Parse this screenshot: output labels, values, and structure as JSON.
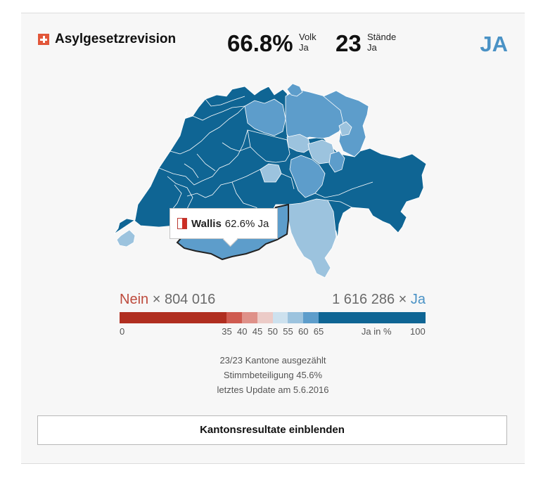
{
  "header": {
    "title": "Asylgesetzrevision",
    "volk_value": "66.8%",
    "volk_label": "Volk",
    "volk_sub": "Ja",
    "staende_value": "23",
    "staende_label": "Stände",
    "staende_sub": "Ja",
    "verdict": "JA"
  },
  "tooltip": {
    "canton": "Wallis",
    "value": "62.6% Ja"
  },
  "totals": {
    "no_label": "Nein",
    "no_count": "× 804 016",
    "yes_count": "1 616 286 ×",
    "yes_label": "Ja"
  },
  "legend": {
    "ticks": [
      "0",
      "35",
      "40",
      "45",
      "50",
      "55",
      "60",
      "65",
      "Ja in %",
      "100"
    ],
    "colors": [
      "#b02e20",
      "#cf5b50",
      "#df9189",
      "#eccbc7",
      "#cde1ee",
      "#9cc3de",
      "#5d9dcb",
      "#0f6594"
    ],
    "breaks": [
      0,
      35,
      40,
      45,
      50,
      55,
      60,
      65,
      100
    ]
  },
  "stats": {
    "counted": "23/23 Kantone ausgezählt",
    "turnout": "Stimmbeteiligung 45.6%",
    "update": "letztes Update am 5.6.2016"
  },
  "button": {
    "label": "Kantonsresultate einblenden"
  },
  "colors": {
    "yes_text": "#4a92c5",
    "no_text": "#bd4a3c",
    "map_dark": "#0f6594",
    "map_mid": "#5d9dcb",
    "map_light": "#9cc3de"
  }
}
